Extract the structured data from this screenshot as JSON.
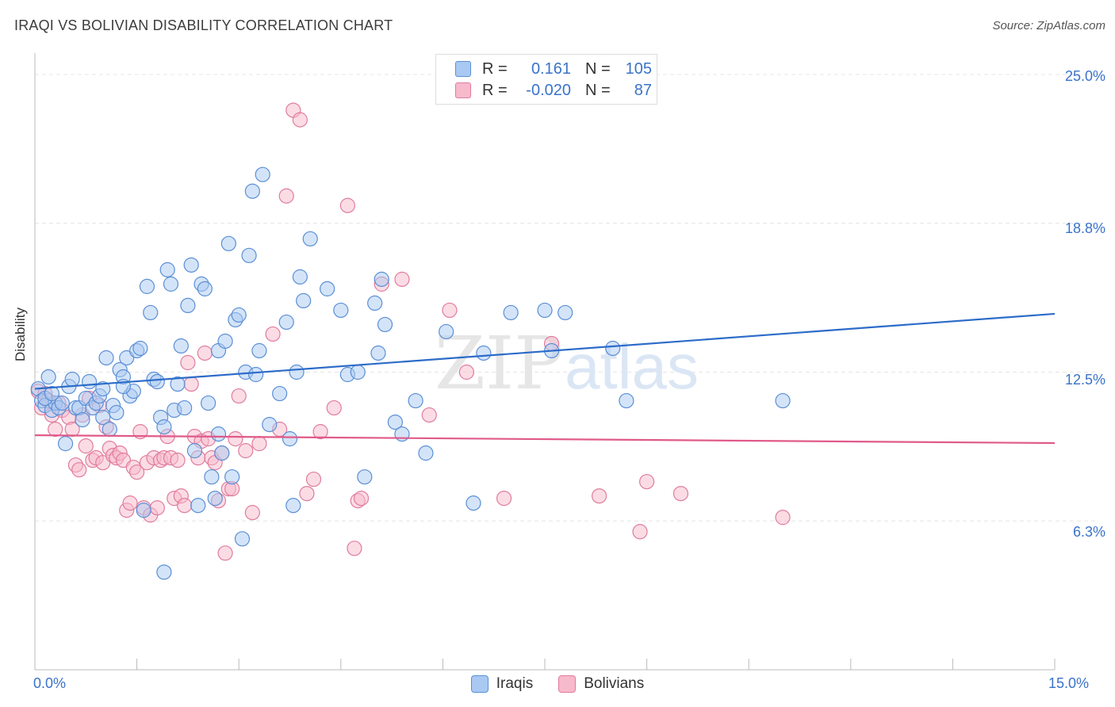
{
  "header": {
    "title": "IRAQI VS BOLIVIAN DISABILITY CORRELATION CHART",
    "source": "Source: ZipAtlas.com"
  },
  "watermark": {
    "zip": "ZIP",
    "atlas": "atlas"
  },
  "legend": {
    "rows": [
      {
        "r_label": "R =",
        "r_value": "0.161",
        "n_label": "N =",
        "n_value": "105",
        "color": "#a9c9f2"
      },
      {
        "r_label": "R =",
        "r_value": "-0.020",
        "n_label": "N =",
        "n_value": "87",
        "color": "#f7b9cc"
      }
    ]
  },
  "axes": {
    "ylabel": "Disability",
    "y_ticks": [
      "25.0%",
      "18.8%",
      "12.5%",
      "6.3%"
    ],
    "x_ticks": [
      "0.0%",
      "15.0%"
    ]
  },
  "colors": {
    "iraqi_fill": "#a9c9f2",
    "iraqi_stroke": "#5b8fd6",
    "iraqi_line": "#2c6cc9",
    "bolivian_fill": "#f7b9cc",
    "bolivian_stroke": "#e07c9d",
    "bolivian_line": "#e05a8a",
    "grid": "#e4e4e4",
    "tick_text": "#3a73c9"
  },
  "chart_data": {
    "type": "scatter",
    "title": "IRAQI VS BOLIVIAN DISABILITY CORRELATION CHART",
    "xlabel": "",
    "ylabel": "Disability",
    "xlim": [
      0,
      15
    ],
    "ylim": [
      0,
      25.9
    ],
    "y_gridlines": [
      6.25,
      12.5,
      18.75,
      25.0
    ],
    "legend_placement": "top-center",
    "series": [
      {
        "name": "Iraqis",
        "color": "#a9c9f2",
        "trend": {
          "x": [
            0,
            15
          ],
          "y": [
            11.8,
            14.95
          ]
        },
        "points": [
          [
            0.05,
            11.8
          ],
          [
            0.1,
            11.3
          ],
          [
            0.15,
            11.1
          ],
          [
            0.2,
            12.3
          ],
          [
            0.25,
            10.9
          ],
          [
            0.3,
            11.2
          ],
          [
            0.35,
            11.0
          ],
          [
            0.4,
            11.2
          ],
          [
            0.45,
            9.5
          ],
          [
            0.5,
            11.9
          ],
          [
            0.55,
            12.2
          ],
          [
            0.6,
            11.0
          ],
          [
            0.65,
            11.0
          ],
          [
            0.7,
            10.5
          ],
          [
            0.75,
            11.4
          ],
          [
            0.8,
            12.1
          ],
          [
            0.85,
            11.0
          ],
          [
            0.9,
            11.2
          ],
          [
            0.95,
            11.5
          ],
          [
            1.0,
            11.8
          ],
          [
            1.0,
            10.6
          ],
          [
            1.05,
            13.1
          ],
          [
            1.1,
            10.1
          ],
          [
            1.15,
            11.1
          ],
          [
            1.2,
            10.8
          ],
          [
            1.25,
            12.6
          ],
          [
            1.3,
            12.3
          ],
          [
            1.35,
            13.1
          ],
          [
            1.4,
            11.5
          ],
          [
            1.45,
            11.7
          ],
          [
            1.5,
            13.4
          ],
          [
            1.55,
            13.5
          ],
          [
            1.6,
            6.7
          ],
          [
            1.65,
            16.1
          ],
          [
            1.7,
            15.0
          ],
          [
            1.75,
            12.2
          ],
          [
            1.8,
            12.1
          ],
          [
            1.85,
            10.6
          ],
          [
            1.9,
            10.2
          ],
          [
            1.95,
            16.8
          ],
          [
            2.0,
            16.2
          ],
          [
            2.05,
            10.9
          ],
          [
            2.1,
            12.0
          ],
          [
            2.15,
            13.6
          ],
          [
            2.2,
            11.0
          ],
          [
            2.25,
            15.3
          ],
          [
            2.3,
            17.0
          ],
          [
            2.35,
            9.2
          ],
          [
            2.4,
            6.9
          ],
          [
            2.45,
            16.2
          ],
          [
            2.5,
            16.0
          ],
          [
            2.55,
            11.2
          ],
          [
            2.6,
            8.1
          ],
          [
            2.65,
            7.2
          ],
          [
            2.7,
            13.4
          ],
          [
            2.75,
            9.1
          ],
          [
            2.8,
            13.8
          ],
          [
            2.85,
            17.9
          ],
          [
            2.9,
            8.1
          ],
          [
            2.95,
            14.7
          ],
          [
            3.0,
            14.9
          ],
          [
            3.05,
            5.5
          ],
          [
            3.1,
            12.5
          ],
          [
            3.15,
            17.4
          ],
          [
            3.2,
            20.1
          ],
          [
            3.25,
            12.4
          ],
          [
            3.3,
            13.4
          ],
          [
            3.35,
            20.8
          ],
          [
            3.45,
            10.3
          ],
          [
            3.6,
            11.6
          ],
          [
            3.7,
            14.6
          ],
          [
            3.75,
            9.7
          ],
          [
            3.8,
            6.9
          ],
          [
            3.85,
            12.5
          ],
          [
            3.9,
            16.5
          ],
          [
            3.95,
            15.5
          ],
          [
            4.05,
            18.1
          ],
          [
            4.3,
            16.0
          ],
          [
            4.5,
            15.1
          ],
          [
            4.6,
            12.4
          ],
          [
            4.75,
            12.5
          ],
          [
            4.85,
            8.1
          ],
          [
            5.0,
            15.4
          ],
          [
            5.05,
            13.3
          ],
          [
            5.1,
            16.4
          ],
          [
            5.15,
            14.5
          ],
          [
            5.3,
            10.4
          ],
          [
            5.4,
            9.9
          ],
          [
            5.6,
            11.3
          ],
          [
            5.75,
            9.1
          ],
          [
            6.05,
            14.2
          ],
          [
            6.45,
            7.0
          ],
          [
            6.6,
            13.3
          ],
          [
            7.0,
            15.0
          ],
          [
            7.5,
            15.1
          ],
          [
            7.8,
            15.0
          ],
          [
            7.6,
            13.4
          ],
          [
            8.5,
            13.5
          ],
          [
            8.7,
            11.3
          ],
          [
            11.0,
            11.3
          ],
          [
            0.15,
            11.4
          ],
          [
            0.25,
            11.6
          ],
          [
            1.3,
            11.9
          ],
          [
            1.9,
            4.1
          ],
          [
            2.7,
            9.9
          ]
        ]
      },
      {
        "name": "Bolivians",
        "color": "#f7b9cc",
        "trend": {
          "x": [
            0,
            15
          ],
          "y": [
            9.85,
            9.52
          ]
        },
        "points": [
          [
            0.05,
            11.7
          ],
          [
            0.1,
            11.0
          ],
          [
            0.15,
            11.6
          ],
          [
            0.2,
            11.3
          ],
          [
            0.25,
            10.7
          ],
          [
            0.3,
            10.1
          ],
          [
            0.35,
            11.2
          ],
          [
            0.4,
            10.9
          ],
          [
            0.5,
            10.6
          ],
          [
            0.55,
            10.1
          ],
          [
            0.6,
            8.6
          ],
          [
            0.65,
            8.4
          ],
          [
            0.7,
            10.7
          ],
          [
            0.75,
            9.4
          ],
          [
            0.8,
            11.4
          ],
          [
            0.85,
            8.8
          ],
          [
            0.9,
            8.9
          ],
          [
            0.95,
            11.1
          ],
          [
            1.0,
            8.7
          ],
          [
            1.05,
            10.2
          ],
          [
            1.1,
            9.3
          ],
          [
            1.15,
            9.0
          ],
          [
            1.2,
            8.9
          ],
          [
            1.25,
            9.1
          ],
          [
            1.3,
            8.8
          ],
          [
            1.35,
            6.7
          ],
          [
            1.4,
            7.0
          ],
          [
            1.45,
            8.5
          ],
          [
            1.5,
            8.3
          ],
          [
            1.55,
            10.0
          ],
          [
            1.6,
            6.8
          ],
          [
            1.65,
            8.7
          ],
          [
            1.7,
            6.5
          ],
          [
            1.75,
            8.9
          ],
          [
            1.8,
            6.8
          ],
          [
            1.85,
            8.8
          ],
          [
            1.9,
            8.9
          ],
          [
            1.95,
            9.8
          ],
          [
            2.0,
            8.9
          ],
          [
            2.05,
            7.2
          ],
          [
            2.1,
            8.8
          ],
          [
            2.15,
            7.3
          ],
          [
            2.2,
            6.9
          ],
          [
            2.25,
            12.9
          ],
          [
            2.3,
            12.0
          ],
          [
            2.35,
            9.8
          ],
          [
            2.4,
            8.9
          ],
          [
            2.45,
            9.6
          ],
          [
            2.5,
            13.3
          ],
          [
            2.55,
            9.7
          ],
          [
            2.6,
            8.9
          ],
          [
            2.65,
            8.7
          ],
          [
            2.7,
            7.1
          ],
          [
            2.75,
            9.1
          ],
          [
            2.8,
            4.9
          ],
          [
            2.85,
            7.6
          ],
          [
            2.9,
            7.6
          ],
          [
            2.95,
            9.7
          ],
          [
            3.0,
            11.5
          ],
          [
            3.1,
            9.2
          ],
          [
            3.2,
            6.6
          ],
          [
            3.3,
            9.5
          ],
          [
            3.5,
            14.1
          ],
          [
            3.6,
            10.1
          ],
          [
            3.7,
            19.9
          ],
          [
            3.8,
            23.5
          ],
          [
            3.9,
            23.1
          ],
          [
            4.0,
            7.4
          ],
          [
            4.1,
            8.0
          ],
          [
            4.2,
            10.0
          ],
          [
            4.4,
            11.0
          ],
          [
            4.6,
            19.5
          ],
          [
            4.7,
            5.1
          ],
          [
            4.75,
            7.1
          ],
          [
            4.8,
            7.2
          ],
          [
            5.1,
            16.2
          ],
          [
            5.4,
            16.4
          ],
          [
            5.8,
            10.7
          ],
          [
            6.1,
            15.1
          ],
          [
            6.35,
            12.5
          ],
          [
            6.9,
            7.2
          ],
          [
            7.6,
            13.7
          ],
          [
            8.3,
            7.3
          ],
          [
            8.9,
            5.8
          ],
          [
            9.0,
            7.9
          ],
          [
            9.5,
            7.4
          ],
          [
            11.0,
            6.4
          ]
        ]
      }
    ]
  }
}
